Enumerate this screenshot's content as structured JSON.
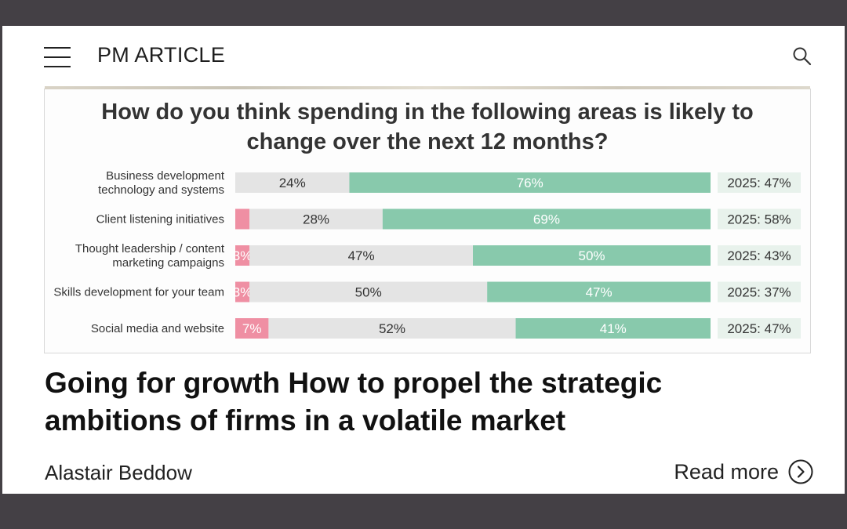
{
  "header": {
    "brand": "PM ARTICLE"
  },
  "icons": {
    "menu": "hamburger-menu-icon",
    "search": "search-icon",
    "read_more": "chevron-right-circle-icon"
  },
  "colors": {
    "frame": "#444045",
    "decrease": "#ef8fa3",
    "same": "#e4e4e4",
    "increase": "#88c9ac",
    "label_box": "#e8f2ec"
  },
  "chart_data": {
    "type": "bar",
    "stacked": true,
    "orientation": "horizontal",
    "title_lines": [
      "How do you think spending in the following areas is likely to",
      "change over the next 12 months?"
    ],
    "categories": [
      [
        "Business development",
        "technology and systems"
      ],
      [
        "Client listening initiatives"
      ],
      [
        "Thought leadership / content",
        "marketing campaigns"
      ],
      [
        "Skills development for your team"
      ],
      [
        "Social media and website"
      ]
    ],
    "series": [
      {
        "values": [
          0,
          3,
          3,
          3,
          7
        ],
        "labels": [
          "",
          "",
          "3%",
          "3%",
          "7%"
        ]
      },
      {
        "values": [
          24,
          28,
          47,
          50,
          52
        ],
        "labels": [
          "24%",
          "28%",
          "47%",
          "50%",
          "52%"
        ]
      },
      {
        "values": [
          76,
          69,
          50,
          47,
          41
        ],
        "labels": [
          "76%",
          "69%",
          "50%",
          "47%",
          "41%"
        ]
      }
    ],
    "side_labels": [
      "2025:  47%",
      "2025:  58%",
      "2025:  43%",
      "2025:  37%",
      "2025:  47%"
    ],
    "xlim": [
      0,
      100
    ]
  },
  "article": {
    "headline_lines": [
      "Going for growth How to propel the strategic",
      "ambitions of firms in a volatile market"
    ],
    "author": "Alastair Beddow",
    "read_more": "Read more"
  }
}
